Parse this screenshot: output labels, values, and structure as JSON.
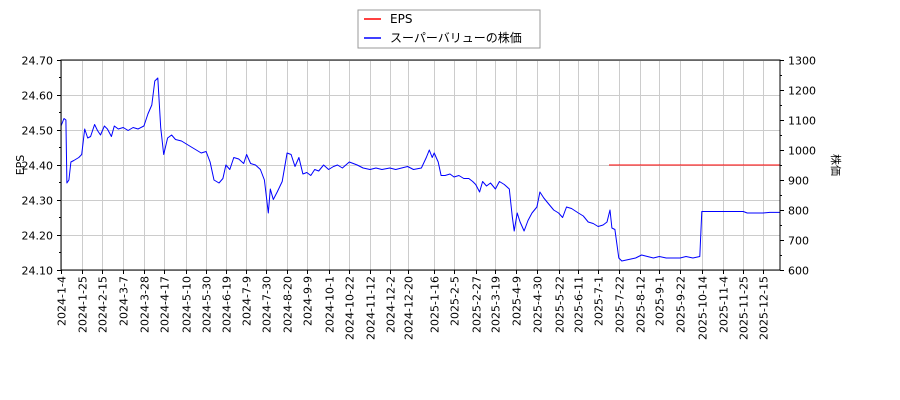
{
  "chart_data": {
    "type": "line",
    "title": "",
    "legend": {
      "position": "top-center",
      "entries": [
        {
          "label": "EPS",
          "color": "#ff0000"
        },
        {
          "label": "スーパーバリューの株価",
          "color": "#0000ff"
        }
      ]
    },
    "left_axis": {
      "label": "EPS",
      "ylim": [
        24.1,
        24.7
      ],
      "ticks": [
        "24.70",
        "24.60",
        "24.50",
        "24.40",
        "24.30",
        "24.20",
        "24.10"
      ]
    },
    "right_axis": {
      "label": "株価",
      "ylim": [
        600,
        1300
      ],
      "ticks": [
        "1300",
        "1200",
        "1100",
        "1000",
        "900",
        "800",
        "700",
        "600"
      ]
    },
    "x_axis": {
      "tick_labels": [
        "2024-1-4",
        "2024-1-25",
        "2024-2-15",
        "2024-3-7",
        "2024-3-28",
        "2024-4-17",
        "2024-5-10",
        "2024-5-30",
        "2024-6-19",
        "2024-7-9",
        "2024-7-30",
        "2024-8-20",
        "2024-9-9",
        "2024-10-1",
        "2024-10-22",
        "2024-11-12",
        "2024-12-2",
        "2024-12-20",
        "2025-1-16",
        "2025-2-5",
        "2025-2-27",
        "2025-3-19",
        "2025-4-9",
        "2025-4-30",
        "2025-5-22",
        "2025-6-11",
        "2025-7-1",
        "2025-7-22",
        "2025-8-12",
        "2025-9-1",
        "2025-9-22",
        "2025-10-14",
        "2025-11-4",
        "2025-11-25",
        "2025-12-15"
      ],
      "grid": true
    },
    "series": [
      {
        "name": "EPS",
        "axis": "left",
        "color": "#ff0000",
        "points": [
          [
            "2025-7-12",
            24.4
          ],
          [
            "2026-1-1",
            24.4
          ]
        ]
      },
      {
        "name": "スーパーバリューの株価",
        "axis": "right",
        "color": "#0000ff",
        "points": [
          [
            "2024-1-4",
            1080
          ],
          [
            "2024-1-7",
            1105
          ],
          [
            "2024-1-9",
            1100
          ],
          [
            "2024-1-10",
            890
          ],
          [
            "2024-1-12",
            900
          ],
          [
            "2024-1-14",
            960
          ],
          [
            "2024-1-17",
            965
          ],
          [
            "2024-1-22",
            975
          ],
          [
            "2024-1-25",
            985
          ],
          [
            "2024-1-28",
            1070
          ],
          [
            "2024-1-31",
            1040
          ],
          [
            "2024-2-3",
            1045
          ],
          [
            "2024-2-7",
            1085
          ],
          [
            "2024-2-10",
            1065
          ],
          [
            "2024-2-13",
            1050
          ],
          [
            "2024-2-17",
            1080
          ],
          [
            "2024-2-20",
            1070
          ],
          [
            "2024-2-24",
            1045
          ],
          [
            "2024-2-27",
            1080
          ],
          [
            "2024-3-2",
            1070
          ],
          [
            "2024-3-7",
            1075
          ],
          [
            "2024-3-12",
            1065
          ],
          [
            "2024-3-17",
            1075
          ],
          [
            "2024-3-22",
            1070
          ],
          [
            "2024-3-28",
            1080
          ],
          [
            "2024-4-1",
            1120
          ],
          [
            "2024-4-5",
            1150
          ],
          [
            "2024-4-8",
            1230
          ],
          [
            "2024-4-11",
            1240
          ],
          [
            "2024-4-14",
            1075
          ],
          [
            "2024-4-17",
            985
          ],
          [
            "2024-4-21",
            1040
          ],
          [
            "2024-4-25",
            1050
          ],
          [
            "2024-4-29",
            1035
          ],
          [
            "2024-5-5",
            1030
          ],
          [
            "2024-5-10",
            1020
          ],
          [
            "2024-5-15",
            1010
          ],
          [
            "2024-5-20",
            1000
          ],
          [
            "2024-5-25",
            990
          ],
          [
            "2024-5-30",
            995
          ],
          [
            "2024-6-3",
            960
          ],
          [
            "2024-6-7",
            900
          ],
          [
            "2024-6-12",
            890
          ],
          [
            "2024-6-16",
            905
          ],
          [
            "2024-6-19",
            950
          ],
          [
            "2024-6-23",
            935
          ],
          [
            "2024-6-27",
            975
          ],
          [
            "2024-7-2",
            970
          ],
          [
            "2024-7-7",
            955
          ],
          [
            "2024-7-10",
            985
          ],
          [
            "2024-7-14",
            955
          ],
          [
            "2024-7-19",
            950
          ],
          [
            "2024-7-24",
            935
          ],
          [
            "2024-7-28",
            900
          ],
          [
            "2024-8-1",
            790
          ],
          [
            "2024-8-3",
            870
          ],
          [
            "2024-8-6",
            835
          ],
          [
            "2024-8-10",
            860
          ],
          [
            "2024-8-15",
            895
          ],
          [
            "2024-8-20",
            990
          ],
          [
            "2024-8-24",
            985
          ],
          [
            "2024-8-28",
            945
          ],
          [
            "2024-9-1",
            975
          ],
          [
            "2024-9-5",
            920
          ],
          [
            "2024-9-9",
            925
          ],
          [
            "2024-9-13",
            915
          ],
          [
            "2024-9-17",
            935
          ],
          [
            "2024-9-21",
            930
          ],
          [
            "2024-9-26",
            950
          ],
          [
            "2024-10-1",
            935
          ],
          [
            "2024-10-6",
            945
          ],
          [
            "2024-10-10",
            950
          ],
          [
            "2024-10-15",
            940
          ],
          [
            "2024-10-22",
            960
          ],
          [
            "2024-10-26",
            955
          ],
          [
            "2024-10-30",
            950
          ],
          [
            "2024-11-5",
            940
          ],
          [
            "2024-11-12",
            935
          ],
          [
            "2024-11-18",
            940
          ],
          [
            "2024-11-24",
            935
          ],
          [
            "2024-12-2",
            940
          ],
          [
            "2024-12-8",
            935
          ],
          [
            "2024-12-14",
            940
          ],
          [
            "2024-12-20",
            945
          ],
          [
            "2024-12-26",
            935
          ],
          [
            "2025-1-3",
            940
          ],
          [
            "2025-1-8",
            975
          ],
          [
            "2025-1-11",
            1000
          ],
          [
            "2025-1-14",
            975
          ],
          [
            "2025-1-16",
            990
          ],
          [
            "2025-1-20",
            960
          ],
          [
            "2025-1-23",
            915
          ],
          [
            "2025-1-27",
            915
          ],
          [
            "2025-2-1",
            920
          ],
          [
            "2025-2-5",
            910
          ],
          [
            "2025-2-10",
            915
          ],
          [
            "2025-2-15",
            905
          ],
          [
            "2025-2-20",
            905
          ],
          [
            "2025-2-24",
            895
          ],
          [
            "2025-2-27",
            885
          ],
          [
            "2025-3-3",
            860
          ],
          [
            "2025-3-6",
            895
          ],
          [
            "2025-3-10",
            880
          ],
          [
            "2025-3-14",
            890
          ],
          [
            "2025-3-19",
            870
          ],
          [
            "2025-3-23",
            895
          ],
          [
            "2025-3-28",
            885
          ],
          [
            "2025-4-2",
            870
          ],
          [
            "2025-4-5",
            780
          ],
          [
            "2025-4-7",
            730
          ],
          [
            "2025-4-10",
            790
          ],
          [
            "2025-4-13",
            760
          ],
          [
            "2025-4-17",
            730
          ],
          [
            "2025-4-21",
            765
          ],
          [
            "2025-4-25",
            790
          ],
          [
            "2025-4-30",
            810
          ],
          [
            "2025-5-3",
            860
          ],
          [
            "2025-5-7",
            840
          ],
          [
            "2025-5-12",
            820
          ],
          [
            "2025-5-17",
            800
          ],
          [
            "2025-5-22",
            790
          ],
          [
            "2025-5-26",
            775
          ],
          [
            "2025-5-30",
            810
          ],
          [
            "2025-6-4",
            805
          ],
          [
            "2025-6-11",
            790
          ],
          [
            "2025-6-16",
            780
          ],
          [
            "2025-6-21",
            760
          ],
          [
            "2025-6-26",
            755
          ],
          [
            "2025-7-1",
            745
          ],
          [
            "2025-7-6",
            750
          ],
          [
            "2025-7-10",
            760
          ],
          [
            "2025-7-13",
            800
          ],
          [
            "2025-7-15",
            740
          ],
          [
            "2025-7-18",
            735
          ],
          [
            "2025-7-22",
            640
          ],
          [
            "2025-7-25",
            630
          ],
          [
            "2025-8-1",
            635
          ],
          [
            "2025-8-8",
            640
          ],
          [
            "2025-8-14",
            650
          ],
          [
            "2025-8-20",
            645
          ],
          [
            "2025-8-26",
            640
          ],
          [
            "2025-9-1",
            645
          ],
          [
            "2025-9-8",
            640
          ],
          [
            "2025-9-15",
            640
          ],
          [
            "2025-9-22",
            640
          ],
          [
            "2025-9-28",
            645
          ],
          [
            "2025-10-5",
            640
          ],
          [
            "2025-10-12",
            645
          ],
          [
            "2025-10-14",
            795
          ],
          [
            "2025-10-20",
            795
          ],
          [
            "2025-11-1",
            795
          ],
          [
            "2025-11-15",
            795
          ],
          [
            "2025-11-25",
            795
          ],
          [
            "2025-11-29",
            790
          ],
          [
            "2025-12-8",
            790
          ],
          [
            "2025-12-15",
            790
          ],
          [
            "2025-12-22",
            792
          ],
          [
            "2026-1-1",
            792
          ]
        ]
      }
    ]
  },
  "colors": {
    "eps": "#ff0000",
    "price": "#0000ff",
    "grid": "#cccccc",
    "axis": "#000000"
  }
}
